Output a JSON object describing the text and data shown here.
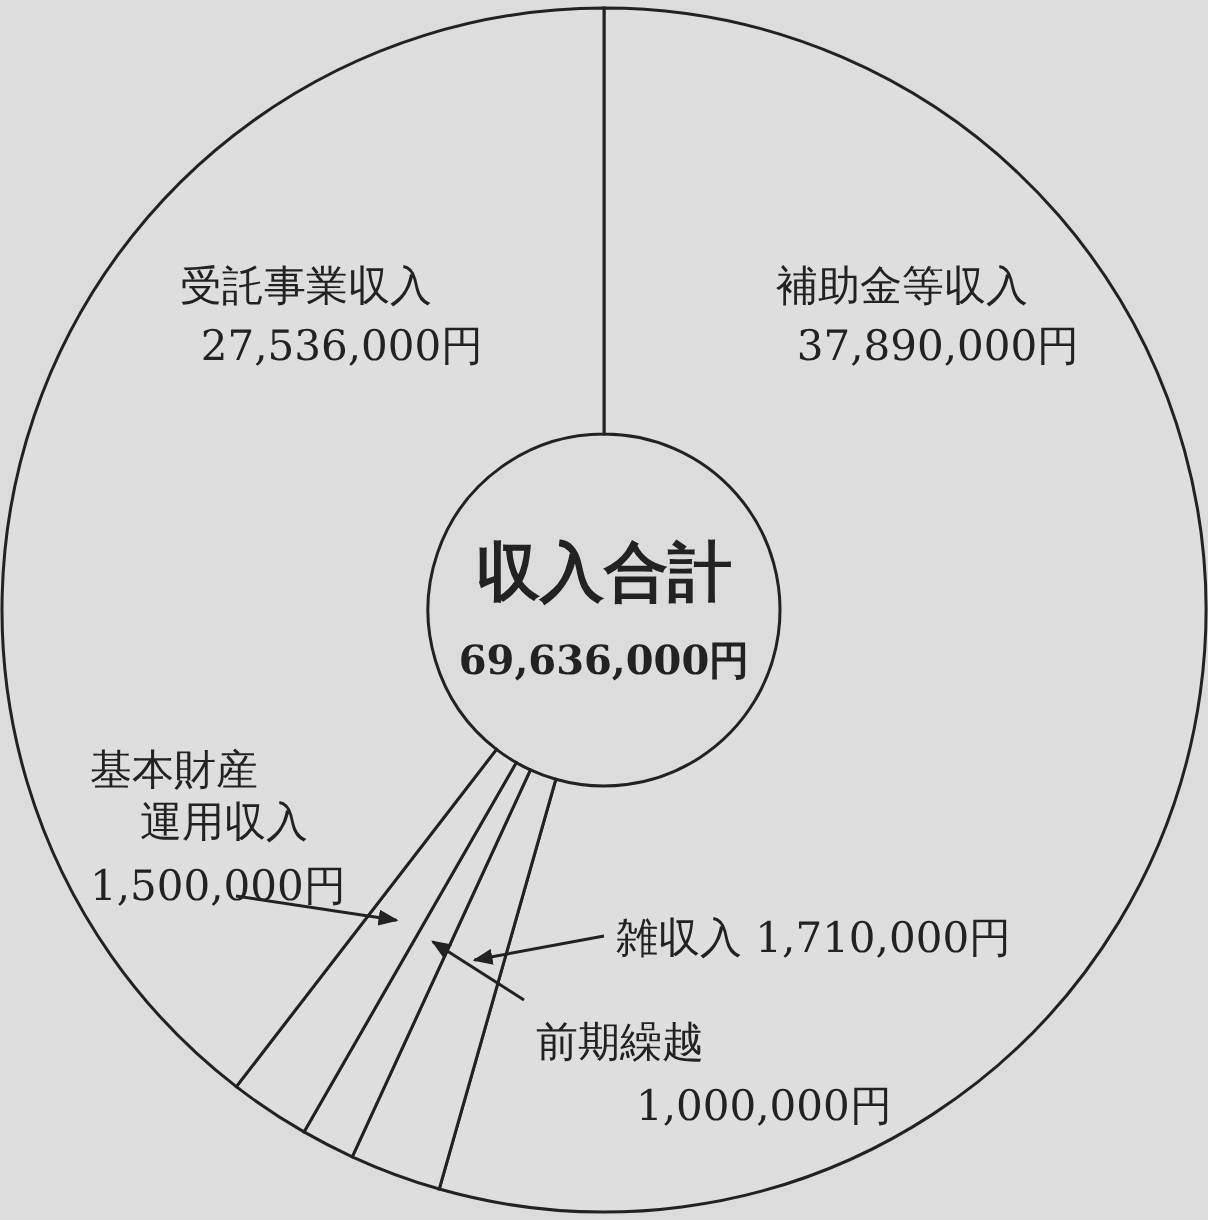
{
  "chart_data": {
    "type": "donut",
    "title": "収入合計",
    "subtitle": "69,636,000円",
    "categories": [
      "補助金等収入",
      "雑収入",
      "前期繰越",
      "基本財産運用収入",
      "受託事業収入"
    ],
    "values": [
      37890000,
      1710000,
      1000000,
      1500000,
      27536000
    ],
    "value_labels": [
      "37,890,000円",
      "1,710,000円",
      "1,000,000円",
      "1,500,000円",
      "27,536,000円"
    ],
    "colors": [
      "#dedede",
      "#dedede",
      "#dedede",
      "#dedede",
      "#dedede"
    ]
  }
}
